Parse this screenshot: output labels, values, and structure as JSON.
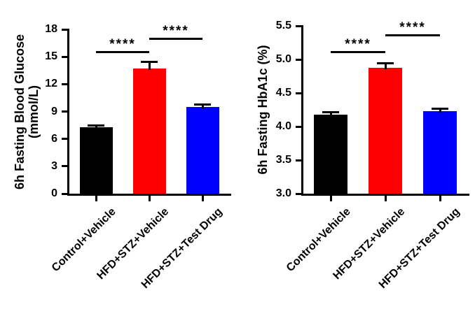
{
  "figure": {
    "background": "#ffffff",
    "text_color": "#000000"
  },
  "chart_data": [
    {
      "id": "fasting-blood-glucose",
      "type": "bar",
      "title": "",
      "ylabel_lines": [
        "6h Fasting Blood Glucose",
        "(mmol/L)"
      ],
      "xlabel": "",
      "categories": [
        "Control+Vehicle",
        "HFD+STZ+Vehicle",
        "HFD+STZ+Test Drug"
      ],
      "values": [
        7.3,
        13.7,
        9.5
      ],
      "errors_upper": [
        0.2,
        0.8,
        0.3
      ],
      "bar_colors": [
        "#000000",
        "#ff0000",
        "#0000ff"
      ],
      "ylim": [
        0,
        18
      ],
      "ytick_values": [
        0,
        3,
        6,
        9,
        12,
        15,
        18
      ],
      "ytick_labels": [
        "0",
        "3",
        "6",
        "9",
        "12",
        "15",
        "18"
      ],
      "grid": false,
      "legend": "none",
      "significance": [
        {
          "from": 0,
          "to": 1,
          "label": "****",
          "y": 15.6
        },
        {
          "from": 1,
          "to": 2,
          "label": "****",
          "y": 17.1
        }
      ]
    },
    {
      "id": "fasting-hba1c",
      "type": "bar",
      "title": "",
      "ylabel_lines": [
        "6h Fasting HbA1c (%)"
      ],
      "xlabel": "",
      "categories": [
        "Control+Vehicle",
        "HFD+STZ+Vehicle",
        "HFD+STZ+Test Drug"
      ],
      "values": [
        4.18,
        4.87,
        4.23
      ],
      "errors_upper": [
        0.04,
        0.08,
        0.04
      ],
      "bar_colors": [
        "#000000",
        "#ff0000",
        "#0000ff"
      ],
      "ylim": [
        3.0,
        5.5
      ],
      "ytick_values": [
        3.0,
        3.5,
        4.0,
        4.5,
        5.0,
        5.5
      ],
      "ytick_labels": [
        "3.0",
        "3.5",
        "4.0",
        "4.5",
        "5.0",
        "5.5"
      ],
      "grid": false,
      "legend": "none",
      "significance": [
        {
          "from": 0,
          "to": 1,
          "label": "****",
          "y": 5.13
        },
        {
          "from": 1,
          "to": 2,
          "label": "****",
          "y": 5.37
        }
      ]
    }
  ]
}
